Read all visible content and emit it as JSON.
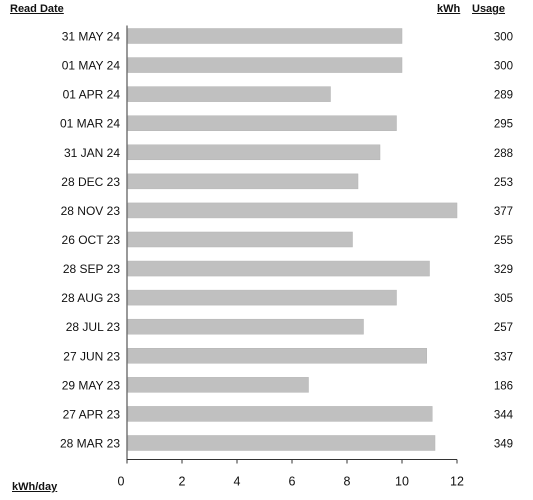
{
  "headers": {
    "read_date": "Read Date",
    "kwh": "kWh",
    "usage": "Usage"
  },
  "footer": {
    "x_unit_label": "kWh/day"
  },
  "colors": {
    "bar": "#c0c0c0",
    "axis": "#333333",
    "text": "#111111"
  },
  "chart_data": {
    "type": "bar",
    "orientation": "horizontal",
    "xlabel": "kWh/day",
    "xlim": [
      0,
      12
    ],
    "x_ticks": [
      0,
      2,
      4,
      6,
      8,
      10,
      12
    ],
    "grid": false,
    "categories": [
      "31 MAY 24",
      "01 MAY 24",
      "01 APR 24",
      "01 MAR 24",
      "31 JAN 24",
      "28 DEC 23",
      "28 NOV 23",
      "26 OCT 23",
      "28 SEP 23",
      "28 AUG 23",
      "28 JUL 23",
      "27 JUN 23",
      "29 MAY 23",
      "27 APR 23",
      "28 MAR 23"
    ],
    "values": [
      10.0,
      10.0,
      7.4,
      9.8,
      9.2,
      8.4,
      12.0,
      8.2,
      11.0,
      9.8,
      8.6,
      10.9,
      6.6,
      11.1,
      11.2
    ],
    "usage": [
      "300",
      "300",
      "289",
      "295",
      "288",
      "253",
      "377",
      "255",
      "329",
      "305",
      "257",
      "337",
      "186",
      "344",
      "349"
    ]
  }
}
